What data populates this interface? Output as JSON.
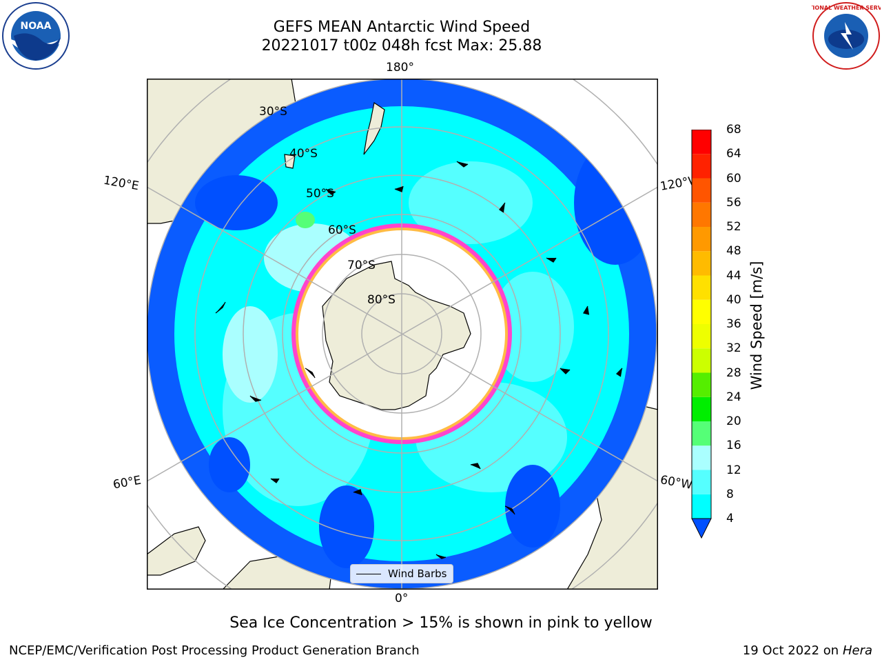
{
  "title_line1": "GEFS MEAN Antarctic Wind Speed",
  "title_line2": "20221017 t00z 048h fcst   Max: 25.88",
  "caption": "Sea Ice Concentration > 15% is shown in pink to yellow",
  "footer_left": "NCEP/EMC/Verification Post Processing Product Generation Branch",
  "footer_right_date": "19 Oct 2022 on ",
  "footer_right_host": "Hera",
  "colorbar_label": "Wind Speed [m/s]",
  "colorbar_ticks": [
    "68",
    "64",
    "60",
    "56",
    "52",
    "48",
    "44",
    "40",
    "36",
    "32",
    "28",
    "24",
    "20",
    "16",
    "12",
    "8",
    "4"
  ],
  "colorbar_colors": [
    "#0050ff",
    "#00ffff",
    "#55ffff",
    "#aaffff",
    "#55ff77",
    "#00ee00",
    "#55ee00",
    "#ccff00",
    "#eeff00",
    "#ffff00",
    "#ffe000",
    "#ffbb00",
    "#ff9900",
    "#ff7700",
    "#ff5500",
    "#ff2200",
    "#ff0000"
  ],
  "legend_label": "Wind Barbs",
  "longitude_labels": {
    "top": "180°",
    "upper_left": "120°E",
    "upper_right": "120°W",
    "lower_left": "60°E",
    "lower_right": "60°W",
    "bottom": "0°"
  },
  "latitude_labels": [
    "30°S",
    "40°S",
    "50°S",
    "60°S",
    "70°S",
    "80°S"
  ],
  "logos": {
    "left": "NOAA",
    "right": "NATIONAL WEATHER SERVICE"
  }
}
